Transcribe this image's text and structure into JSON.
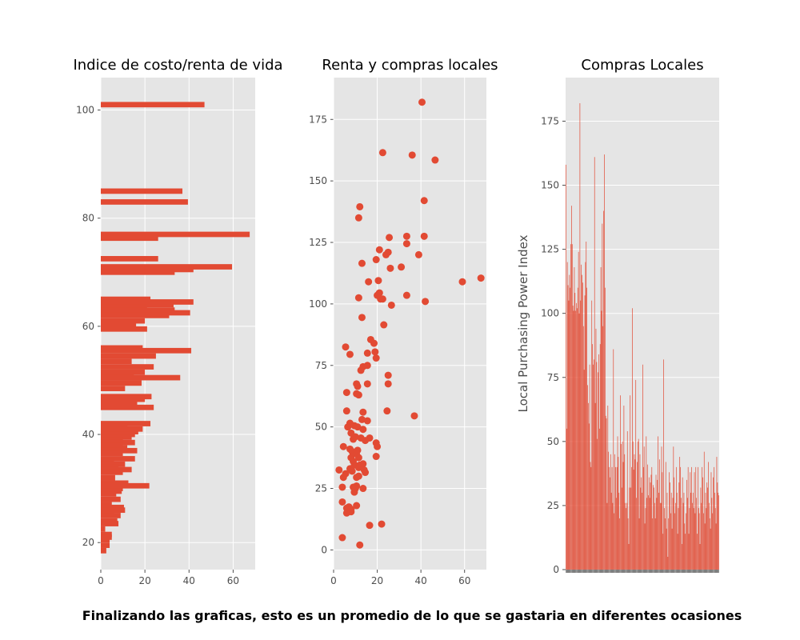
{
  "caption": "Finalizando las graficas, esto es un promedio de lo que se gastaria en diferentes ocasiones",
  "colors": {
    "bar": "#E24A33",
    "panel": "#E5E5E5",
    "grid": "#FFFFFF",
    "tick": "#4D4D4D"
  },
  "chart_data": [
    {
      "type": "bar",
      "orientation": "horizontal",
      "title": "Indice de costo/renta de vida",
      "xlabel": "",
      "ylabel": "",
      "xlim": [
        0,
        70
      ],
      "ylim": [
        15,
        106
      ],
      "xticks": [
        0,
        20,
        40,
        60
      ],
      "yticks": [
        20,
        40,
        60,
        80,
        100
      ],
      "grid": true,
      "bar_height": 1,
      "bars": [
        {
          "y": 101,
          "value": 47
        },
        {
          "y": 85,
          "value": 37
        },
        {
          "y": 83,
          "value": 39.5
        },
        {
          "y": 77,
          "value": 67.5
        },
        {
          "y": 76.3,
          "value": 26
        },
        {
          "y": 72.5,
          "value": 26
        },
        {
          "y": 71,
          "value": 59.5
        },
        {
          "y": 70.5,
          "value": 42
        },
        {
          "y": 70,
          "value": 33.5
        },
        {
          "y": 65,
          "value": 22.5
        },
        {
          "y": 64.5,
          "value": 42
        },
        {
          "y": 64,
          "value": 33
        },
        {
          "y": 63.5,
          "value": 21
        },
        {
          "y": 63,
          "value": 33.5
        },
        {
          "y": 62.5,
          "value": 40.5
        },
        {
          "y": 62,
          "value": 31
        },
        {
          "y": 61,
          "value": 20
        },
        {
          "y": 60,
          "value": 16
        },
        {
          "y": 59.5,
          "value": 21
        },
        {
          "y": 56,
          "value": 19
        },
        {
          "y": 55.5,
          "value": 41
        },
        {
          "y": 54.5,
          "value": 25
        },
        {
          "y": 53.5,
          "value": 14
        },
        {
          "y": 52.5,
          "value": 24
        },
        {
          "y": 51.5,
          "value": 20
        },
        {
          "y": 51,
          "value": 15
        },
        {
          "y": 50.5,
          "value": 36
        },
        {
          "y": 49.5,
          "value": 18.5
        },
        {
          "y": 48.5,
          "value": 11
        },
        {
          "y": 47,
          "value": 23
        },
        {
          "y": 46.5,
          "value": 20
        },
        {
          "y": 45.5,
          "value": 16.5
        },
        {
          "y": 45,
          "value": 24
        },
        {
          "y": 42,
          "value": 22.5
        },
        {
          "y": 41.5,
          "value": 12
        },
        {
          "y": 41,
          "value": 19
        },
        {
          "y": 40.5,
          "value": 17
        },
        {
          "y": 40,
          "value": 15.5
        },
        {
          "y": 39.5,
          "value": 14
        },
        {
          "y": 39,
          "value": 10
        },
        {
          "y": 38.5,
          "value": 15.5
        },
        {
          "y": 38,
          "value": 10
        },
        {
          "y": 37.5,
          "value": 12
        },
        {
          "y": 37,
          "value": 16.5
        },
        {
          "y": 36.5,
          "value": 10
        },
        {
          "y": 35.5,
          "value": 15.5
        },
        {
          "y": 35,
          "value": 6
        },
        {
          "y": 34.5,
          "value": 11
        },
        {
          "y": 34,
          "value": 8
        },
        {
          "y": 33.5,
          "value": 14
        },
        {
          "y": 33,
          "value": 10
        },
        {
          "y": 32,
          "value": 6.5
        },
        {
          "y": 31,
          "value": 12.5
        },
        {
          "y": 30.5,
          "value": 22
        },
        {
          "y": 30,
          "value": 10
        },
        {
          "y": 29.5,
          "value": 9.5
        },
        {
          "y": 29,
          "value": 7
        },
        {
          "y": 28,
          "value": 9
        },
        {
          "y": 27,
          "value": 5
        },
        {
          "y": 26.5,
          "value": 10.5
        },
        {
          "y": 26,
          "value": 11
        },
        {
          "y": 25.5,
          "value": 6
        },
        {
          "y": 25,
          "value": 9
        },
        {
          "y": 24,
          "value": 7.5
        },
        {
          "y": 23.5,
          "value": 8
        },
        {
          "y": 22.5,
          "value": 2
        },
        {
          "y": 21.5,
          "value": 5
        },
        {
          "y": 21,
          "value": 5
        },
        {
          "y": 20.5,
          "value": 4
        },
        {
          "y": 19.5,
          "value": 4
        },
        {
          "y": 18.5,
          "value": 2.5
        }
      ]
    },
    {
      "type": "scatter",
      "title": "Renta y compras locales",
      "xlabel": "",
      "ylabel": "",
      "xlim": [
        0,
        70
      ],
      "ylim": [
        -8,
        192
      ],
      "xticks": [
        0,
        20,
        40,
        60
      ],
      "yticks": [
        0,
        25,
        50,
        75,
        100,
        125,
        150,
        175
      ],
      "grid": true,
      "points": [
        [
          40.5,
          182
        ],
        [
          22.5,
          161.5
        ],
        [
          36,
          160.5
        ],
        [
          46.5,
          158.5
        ],
        [
          41.5,
          142
        ],
        [
          12,
          139.5
        ],
        [
          11.5,
          135
        ],
        [
          25.5,
          127
        ],
        [
          33.5,
          127.5
        ],
        [
          41.5,
          127.5
        ],
        [
          33.5,
          124.5
        ],
        [
          21,
          122
        ],
        [
          24,
          120
        ],
        [
          25,
          121
        ],
        [
          39,
          120
        ],
        [
          13,
          116.5
        ],
        [
          19.5,
          118
        ],
        [
          31,
          115
        ],
        [
          26,
          114.5
        ],
        [
          59,
          109
        ],
        [
          67.5,
          110.5
        ],
        [
          16,
          109
        ],
        [
          20.5,
          109.5
        ],
        [
          11.5,
          102.5
        ],
        [
          20,
          103.5
        ],
        [
          21,
          104.5
        ],
        [
          21.5,
          102
        ],
        [
          22.5,
          102
        ],
        [
          33.5,
          103.5
        ],
        [
          42,
          101
        ],
        [
          26.5,
          99.5
        ],
        [
          13,
          94.5
        ],
        [
          23,
          91.5
        ],
        [
          7.5,
          79.5
        ],
        [
          17,
          85.5
        ],
        [
          18.5,
          84
        ],
        [
          19,
          80.5
        ],
        [
          19.5,
          78
        ],
        [
          15.5,
          80
        ],
        [
          5.5,
          82.5
        ],
        [
          13.5,
          74.5
        ],
        [
          15.5,
          75
        ],
        [
          12.5,
          73
        ],
        [
          25,
          71
        ],
        [
          10.5,
          67.5
        ],
        [
          11,
          66.5
        ],
        [
          15.5,
          67.5
        ],
        [
          25,
          67.5
        ],
        [
          6,
          64
        ],
        [
          10.5,
          63.5
        ],
        [
          11.5,
          63
        ],
        [
          6,
          56.5
        ],
        [
          13.5,
          56
        ],
        [
          24.5,
          56.5
        ],
        [
          37,
          54.5
        ],
        [
          13,
          53
        ],
        [
          15.5,
          52.5
        ],
        [
          7.5,
          51.5
        ],
        [
          9.5,
          50.5
        ],
        [
          11,
          50
        ],
        [
          13.5,
          49
        ],
        [
          4.5,
          42
        ],
        [
          6.5,
          50
        ],
        [
          8,
          47.5
        ],
        [
          9,
          45
        ],
        [
          10,
          46
        ],
        [
          12.5,
          45.5
        ],
        [
          16.5,
          45.5
        ],
        [
          14.5,
          44.5
        ],
        [
          19.5,
          43.5
        ],
        [
          20,
          42
        ],
        [
          7.5,
          41
        ],
        [
          8.5,
          40
        ],
        [
          10.5,
          39
        ],
        [
          11,
          40.5
        ],
        [
          8,
          37.5
        ],
        [
          9,
          36
        ],
        [
          11.5,
          37.5
        ],
        [
          19.5,
          38
        ],
        [
          9.5,
          34.5
        ],
        [
          11.5,
          33.5
        ],
        [
          12,
          34.5
        ],
        [
          13.5,
          35
        ],
        [
          7.5,
          33
        ],
        [
          8.5,
          32
        ],
        [
          14,
          32.5
        ],
        [
          14.5,
          31.5
        ],
        [
          2.5,
          32.5
        ],
        [
          4.5,
          29.5
        ],
        [
          5.5,
          31
        ],
        [
          10.5,
          29.5
        ],
        [
          11.5,
          30
        ],
        [
          4,
          25.5
        ],
        [
          9,
          25.5
        ],
        [
          10.5,
          26
        ],
        [
          13.5,
          25
        ],
        [
          9.5,
          23.5
        ],
        [
          10,
          25
        ],
        [
          4,
          19.5
        ],
        [
          10.5,
          18
        ],
        [
          6,
          17
        ],
        [
          7,
          17.5
        ],
        [
          8,
          16.5
        ],
        [
          6,
          15
        ],
        [
          8,
          15.5
        ],
        [
          16.5,
          10
        ],
        [
          22,
          10.5
        ],
        [
          4,
          5
        ],
        [
          12,
          2
        ]
      ]
    },
    {
      "type": "bar",
      "title": "Compras Locales",
      "xlabel": "",
      "ylabel": "Local Purchasing Power Index",
      "ylim": [
        0,
        192
      ],
      "yticks": [
        0,
        25,
        50,
        75,
        100,
        125,
        150,
        175
      ],
      "grid": true,
      "categories_count": 220,
      "values": [
        158,
        55,
        120,
        111,
        105,
        115,
        110,
        127,
        142,
        127,
        103,
        101,
        118,
        108,
        101,
        104,
        102,
        110,
        124,
        100,
        182,
        105,
        119,
        115,
        112,
        95,
        78,
        107,
        120,
        128,
        110,
        72,
        65,
        57,
        80,
        42,
        40,
        105,
        88,
        80,
        82,
        161,
        65,
        94,
        81,
        51,
        77,
        84,
        55,
        88,
        118,
        101,
        135,
        95,
        140,
        162,
        110,
        60,
        59,
        26,
        64,
        46,
        40,
        36,
        45,
        30,
        40,
        26,
        86,
        22,
        45,
        40,
        28,
        40,
        52,
        44,
        30,
        20,
        68,
        49,
        32,
        50,
        42,
        64,
        45,
        26,
        24,
        26,
        54,
        20,
        10,
        32,
        68,
        32,
        40,
        102,
        50,
        39,
        45,
        43,
        74,
        28,
        42,
        50,
        51,
        20,
        45,
        32,
        36,
        30,
        80,
        40,
        48,
        18,
        24,
        52,
        28,
        41,
        29,
        36,
        28,
        34,
        37,
        40,
        20,
        33,
        32,
        26,
        20,
        37,
        28,
        35,
        52,
        30,
        43,
        26,
        26,
        48,
        38,
        14,
        82,
        24,
        20,
        42,
        16,
        30,
        5,
        20,
        38,
        34,
        22,
        30,
        16,
        28,
        48,
        36,
        22,
        26,
        40,
        30,
        14,
        24,
        34,
        44,
        40,
        28,
        10,
        36,
        26,
        30,
        18,
        14,
        22,
        35,
        28,
        40,
        14,
        24,
        38,
        30,
        40,
        26,
        30,
        24,
        38,
        22,
        40,
        28,
        14,
        40,
        24,
        22,
        10,
        32,
        26,
        40,
        36,
        22,
        46,
        18,
        30,
        24,
        34,
        32,
        42,
        26,
        20,
        16,
        38,
        28,
        22,
        36,
        40,
        30,
        24,
        18,
        44,
        34,
        30,
        29
      ]
    }
  ]
}
